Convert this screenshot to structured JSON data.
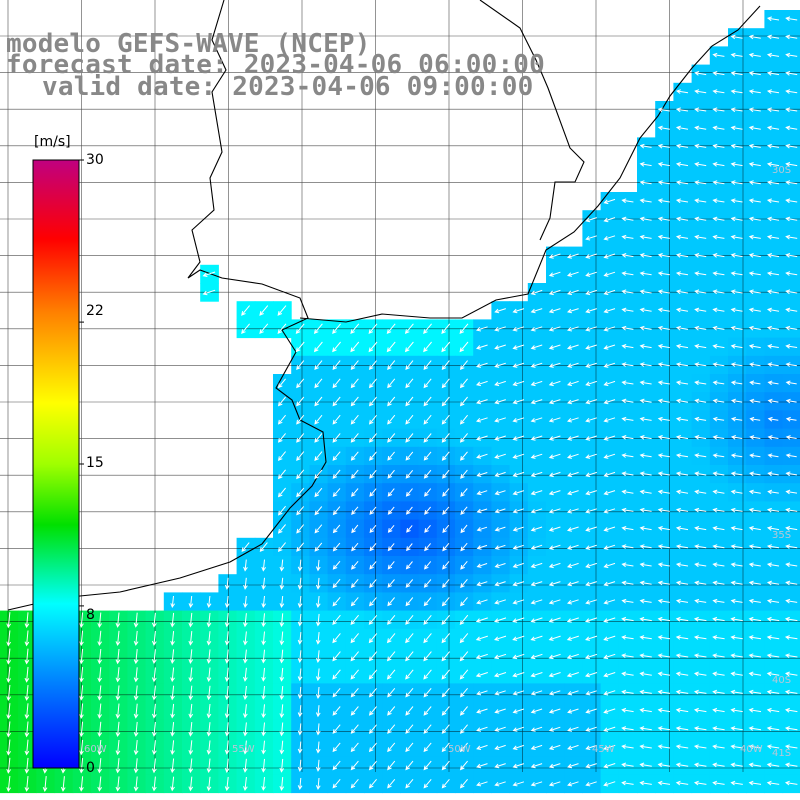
{
  "title": {
    "model": "modelo GEFS-WAVE (NCEP)",
    "forecast": "forecast date: 2023-04-06 06:00:00",
    "valid": "valid date: 2023-04-06 09:00:00"
  },
  "colorbar": {
    "unit": "[m/s]",
    "ticks": [
      "30",
      "22",
      "15",
      "8",
      "0"
    ],
    "tick_values": [
      30,
      22,
      15,
      8,
      0
    ],
    "min": 0,
    "max": 30
  },
  "map_labels": {
    "latitudes": [
      "30S",
      "35S",
      "40S",
      "41S"
    ],
    "longitudes": [
      "60W",
      "55W",
      "50W",
      "45W",
      "40W"
    ]
  },
  "colors": {
    "land": "#ffffff",
    "coastline": "#000000",
    "grid": "#000000",
    "arrows": "#ffffff",
    "title_text": "#888888"
  },
  "legend_glyph": "wind-arrow-icon"
}
